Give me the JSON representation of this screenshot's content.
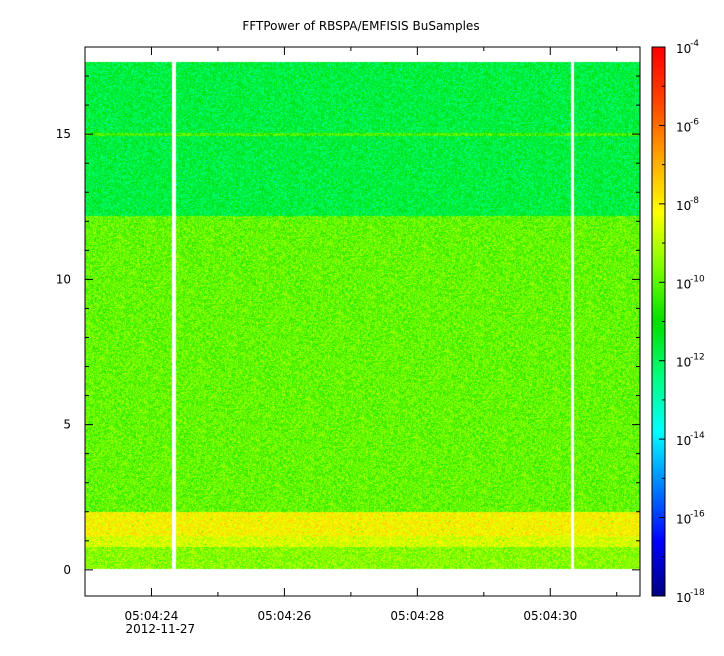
{
  "chart_data": {
    "type": "heatmap",
    "title": "FFTPower of RBSPA/EMFISIS  BuSamples",
    "xlabel": "",
    "ylabel": "",
    "x_axis": {
      "date": "2012-11-27",
      "range": [
        "05:04:23.00",
        "05:04:31.35"
      ],
      "major_ticks": [
        "05:04:24",
        "05:04:26",
        "05:04:28",
        "05:04:30"
      ],
      "minor_ticks": [
        "05:04:25",
        "05:04:27",
        "05:04:29",
        "05:04:31"
      ]
    },
    "y_axis": {
      "range": [
        -0.9,
        18.0
      ],
      "ticks": [
        0,
        5,
        10,
        15
      ]
    },
    "colorbar": {
      "scale": "log",
      "range": [
        1e-18,
        0.0001
      ],
      "ticks": [
        {
          "value": 0.0001,
          "base": "10",
          "exp": "-4"
        },
        {
          "value": 1e-06,
          "base": "10",
          "exp": "-6"
        },
        {
          "value": 1e-08,
          "base": "10",
          "exp": "-8"
        },
        {
          "value": 1e-10,
          "base": "10",
          "exp": "-10"
        },
        {
          "value": 1e-12,
          "base": "10",
          "exp": "-12"
        },
        {
          "value": 1e-14,
          "base": "10",
          "exp": "-14"
        },
        {
          "value": 1e-16,
          "base": "10",
          "exp": "-16"
        },
        {
          "value": 1e-18,
          "base": "10",
          "exp": "-18"
        }
      ],
      "colormap": [
        "#00007f",
        "#0000ff",
        "#007fff",
        "#00ffff",
        "#00ff7f",
        "#00e000",
        "#7fff00",
        "#ffff00",
        "#ffa500",
        "#ff4500",
        "#ff0000"
      ]
    },
    "data_extent": {
      "y": [
        0.05,
        17.5
      ]
    },
    "gaps": [
      "05:04:24.33",
      "05:04:30.33"
    ],
    "bands": [
      {
        "y": [
          0.05,
          0.8
        ],
        "log10_power": -9.5
      },
      {
        "y": [
          0.8,
          1.2
        ],
        "log10_power": -8.6
      },
      {
        "y": [
          1.2,
          2.0
        ],
        "log10_power": -8.1
      },
      {
        "y": [
          2.0,
          12.2
        ],
        "log10_power": -9.9
      },
      {
        "y": [
          12.2,
          17.5
        ],
        "log10_power": -11.7
      }
    ],
    "line_features": [
      {
        "y": 15.0,
        "log10_power": -10.2
      }
    ]
  }
}
